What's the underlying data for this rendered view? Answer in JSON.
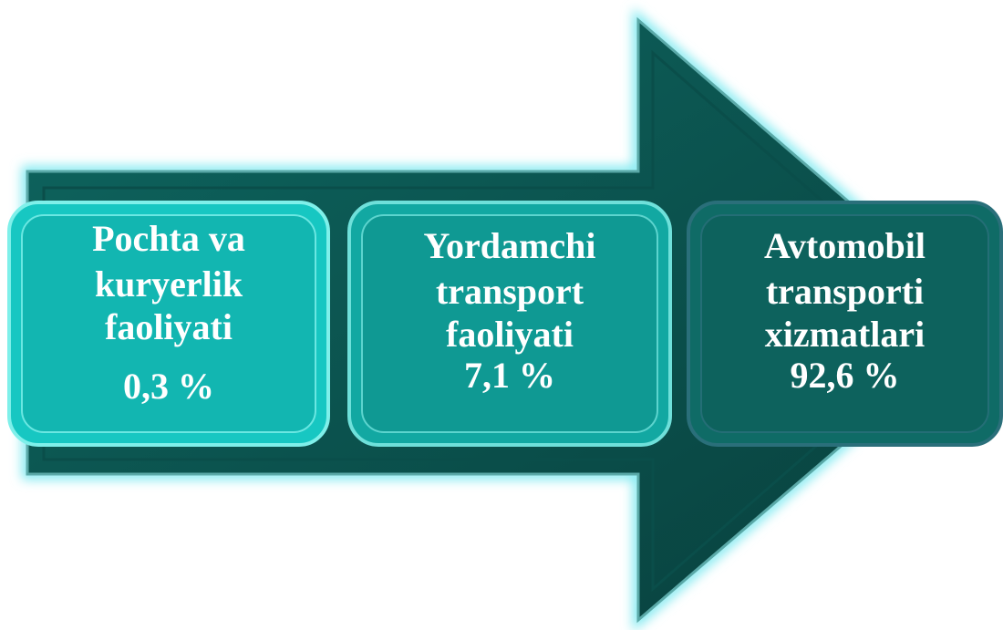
{
  "boxes": [
    {
      "lines": [
        "Pochta va",
        "kuryerlik",
        "faoliyati"
      ],
      "value": "0,3 %"
    },
    {
      "lines": [
        "Yordamchi",
        "transport",
        "faoliyati"
      ],
      "value": "7,1 %"
    },
    {
      "lines": [
        "Avtomobil",
        "transporti",
        "xizmatlari"
      ],
      "value": "92,6 %"
    }
  ]
}
